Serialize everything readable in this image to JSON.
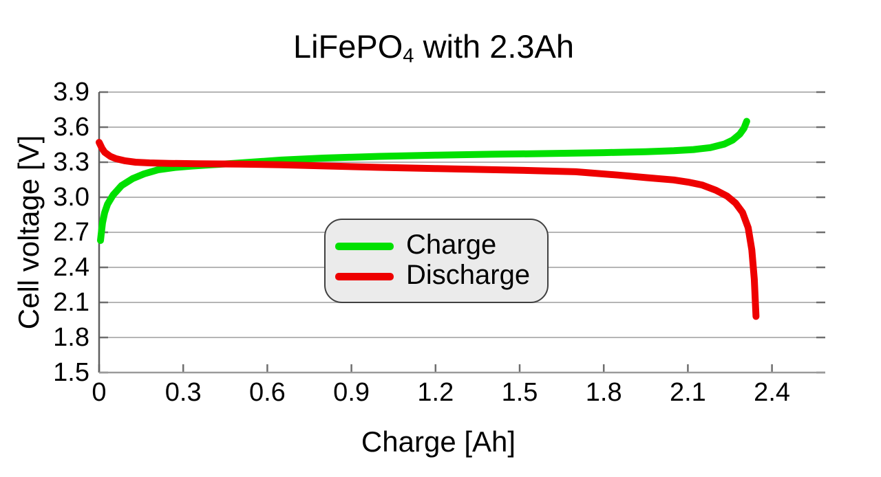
{
  "chart_data": {
    "type": "line",
    "title": {
      "prefix": "LiFePO",
      "subscript": "4",
      "suffix": " with 2.3Ah"
    },
    "xlabel": "Charge [Ah]",
    "ylabel": "Cell voltage [V]",
    "xlim": [
      0,
      2.59
    ],
    "ylim": [
      1.5,
      3.9
    ],
    "grid": true,
    "legend": {
      "position": "center",
      "entries": [
        "Charge",
        "Discharge"
      ]
    },
    "x_ticks": [
      {
        "v": 0,
        "label": "0"
      },
      {
        "v": 0.3,
        "label": "0.3"
      },
      {
        "v": 0.6,
        "label": "0.6"
      },
      {
        "v": 0.9,
        "label": "0.9"
      },
      {
        "v": 1.2,
        "label": "1.2"
      },
      {
        "v": 1.5,
        "label": "1.5"
      },
      {
        "v": 1.8,
        "label": "1.8"
      },
      {
        "v": 2.1,
        "label": "2.1"
      },
      {
        "v": 2.4,
        "label": "2.4"
      }
    ],
    "y_ticks": [
      {
        "v": 1.5,
        "label": "1.5"
      },
      {
        "v": 1.8,
        "label": "1.8"
      },
      {
        "v": 2.1,
        "label": "2.1"
      },
      {
        "v": 2.4,
        "label": "2.4"
      },
      {
        "v": 2.7,
        "label": "2.7"
      },
      {
        "v": 3.0,
        "label": "3.0"
      },
      {
        "v": 3.3,
        "label": "3.3"
      },
      {
        "v": 3.6,
        "label": "3.6"
      },
      {
        "v": 3.9,
        "label": "3.9"
      }
    ],
    "series": [
      {
        "name": "Charge",
        "color": "#00e000",
        "points": [
          [
            0.005,
            2.63
          ],
          [
            0.008,
            2.7
          ],
          [
            0.012,
            2.78
          ],
          [
            0.02,
            2.87
          ],
          [
            0.03,
            2.94
          ],
          [
            0.05,
            3.02
          ],
          [
            0.08,
            3.1
          ],
          [
            0.12,
            3.16
          ],
          [
            0.16,
            3.2
          ],
          [
            0.21,
            3.235
          ],
          [
            0.27,
            3.255
          ],
          [
            0.33,
            3.267
          ],
          [
            0.4,
            3.278
          ],
          [
            0.47,
            3.288
          ],
          [
            0.55,
            3.301
          ],
          [
            0.65,
            3.318
          ],
          [
            0.8,
            3.335
          ],
          [
            1.0,
            3.35
          ],
          [
            1.2,
            3.36
          ],
          [
            1.4,
            3.368
          ],
          [
            1.6,
            3.374
          ],
          [
            1.8,
            3.382
          ],
          [
            1.95,
            3.39
          ],
          [
            2.05,
            3.398
          ],
          [
            2.12,
            3.408
          ],
          [
            2.18,
            3.425
          ],
          [
            2.23,
            3.455
          ],
          [
            2.26,
            3.49
          ],
          [
            2.285,
            3.54
          ],
          [
            2.3,
            3.59
          ],
          [
            2.31,
            3.65
          ]
        ]
      },
      {
        "name": "Discharge",
        "color": "#ee0000",
        "points": [
          [
            0.0,
            3.47
          ],
          [
            0.01,
            3.42
          ],
          [
            0.02,
            3.385
          ],
          [
            0.04,
            3.35
          ],
          [
            0.06,
            3.33
          ],
          [
            0.09,
            3.313
          ],
          [
            0.13,
            3.3
          ],
          [
            0.18,
            3.294
          ],
          [
            0.25,
            3.29
          ],
          [
            0.35,
            3.287
          ],
          [
            0.5,
            3.284
          ],
          [
            0.65,
            3.278
          ],
          [
            0.8,
            3.268
          ],
          [
            1.0,
            3.256
          ],
          [
            1.2,
            3.246
          ],
          [
            1.4,
            3.236
          ],
          [
            1.55,
            3.228
          ],
          [
            1.7,
            3.218
          ],
          [
            1.85,
            3.19
          ],
          [
            1.95,
            3.168
          ],
          [
            2.05,
            3.148
          ],
          [
            2.1,
            3.13
          ],
          [
            2.15,
            3.105
          ],
          [
            2.2,
            3.06
          ],
          [
            2.24,
            3.01
          ],
          [
            2.27,
            2.95
          ],
          [
            2.295,
            2.87
          ],
          [
            2.315,
            2.74
          ],
          [
            2.328,
            2.55
          ],
          [
            2.337,
            2.3
          ],
          [
            2.343,
            1.98
          ]
        ]
      }
    ]
  }
}
